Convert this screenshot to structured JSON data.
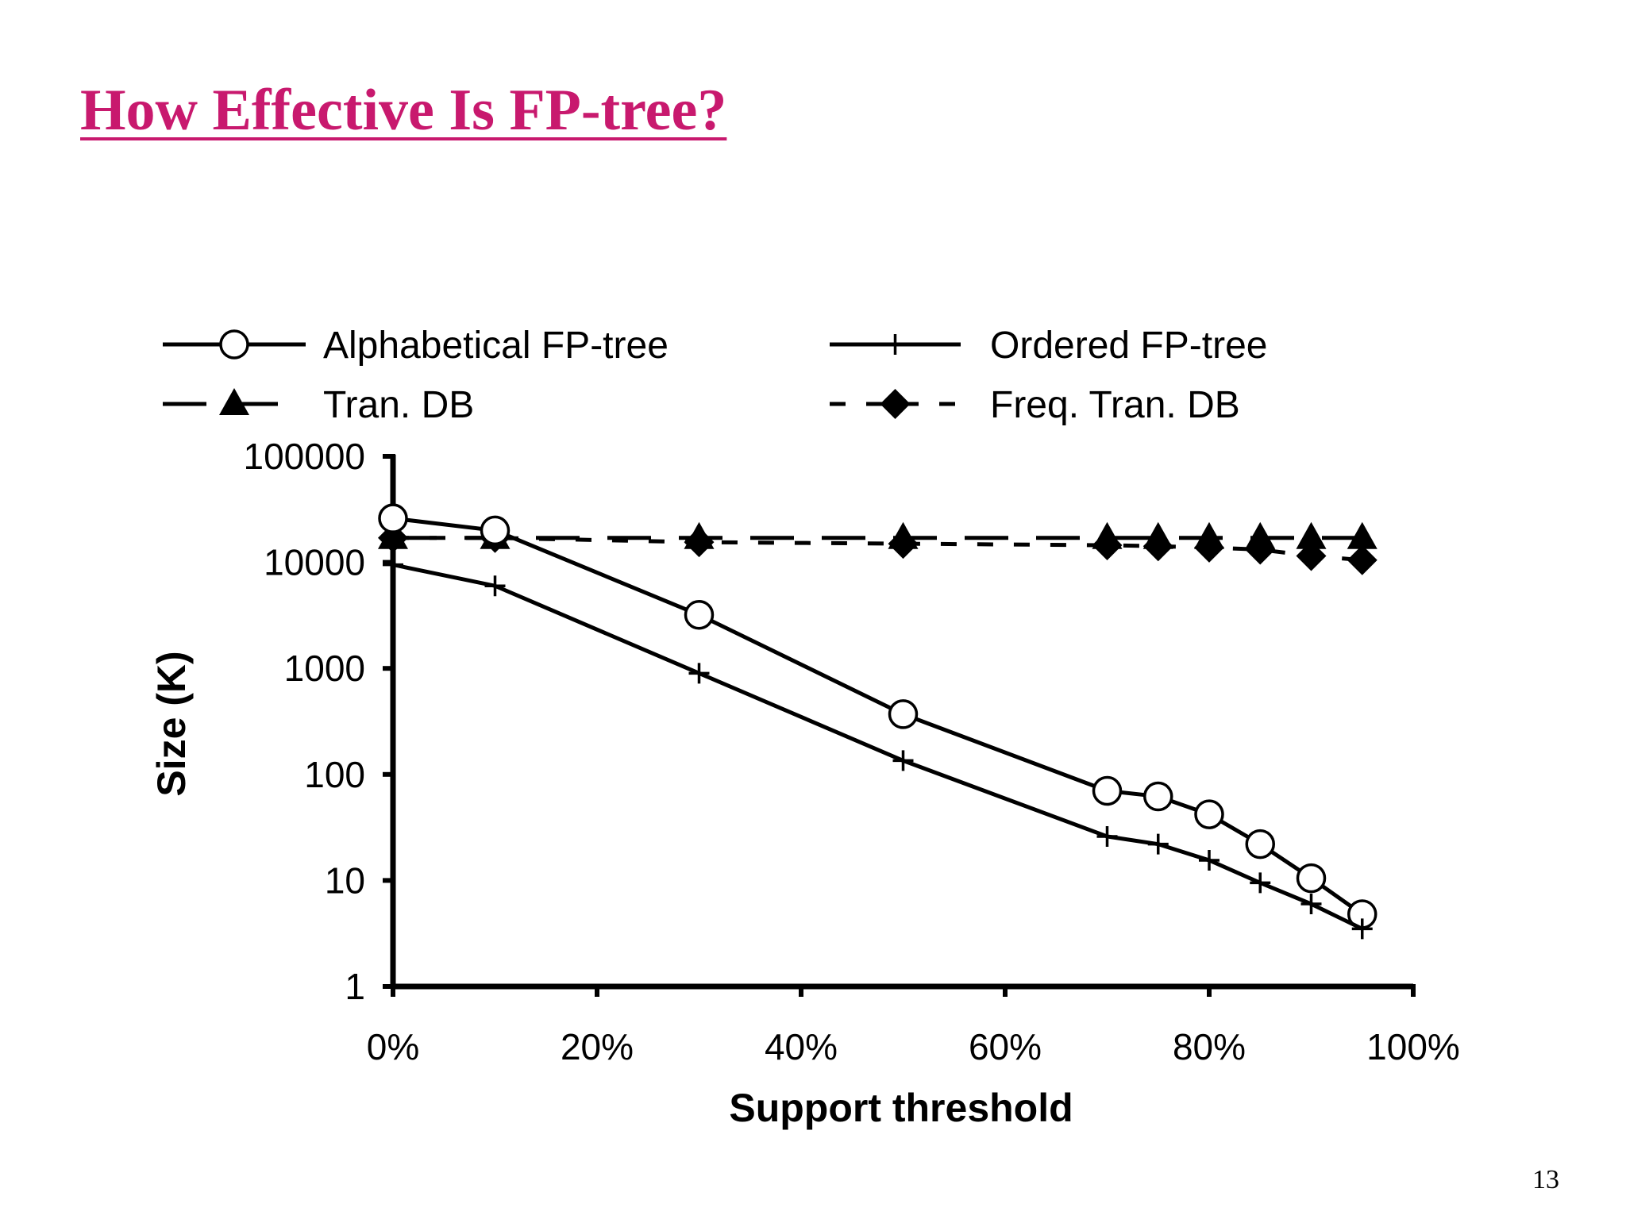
{
  "slide": {
    "title": "How Effective Is FP-tree?",
    "page_number": "13"
  },
  "chart_data": {
    "type": "line",
    "xlabel": "Support threshold",
    "ylabel": "Size (K)",
    "y_scale": "log",
    "xlim": [
      0,
      100
    ],
    "ylim": [
      1,
      100000
    ],
    "x_ticks": [
      "0%",
      "20%",
      "40%",
      "60%",
      "80%",
      "100%"
    ],
    "y_ticks": [
      "1",
      "10",
      "100",
      "1000",
      "10000",
      "100000"
    ],
    "grid": false,
    "legend_position": "top",
    "series": [
      {
        "name": "Alphabetical FP-tree",
        "marker": "circle-open",
        "line": "solid",
        "color": "#000000",
        "x": [
          0,
          10,
          30,
          50,
          70,
          75,
          80,
          85,
          90,
          95
        ],
        "y": [
          26000,
          20000,
          3200,
          370,
          70,
          62,
          42,
          22,
          10.5,
          4.8
        ]
      },
      {
        "name": "Ordered FP-tree",
        "marker": "plus",
        "line": "solid",
        "color": "#000000",
        "x": [
          0,
          10,
          30,
          50,
          70,
          75,
          80,
          85,
          90,
          95
        ],
        "y": [
          9500,
          6000,
          900,
          135,
          26,
          22,
          15.5,
          9.5,
          6,
          3.5
        ]
      },
      {
        "name": "Tran. DB",
        "marker": "triangle-filled",
        "line": "long-dash",
        "color": "#000000",
        "x": [
          0,
          10,
          30,
          50,
          70,
          75,
          80,
          85,
          90,
          95
        ],
        "y": [
          17000,
          17000,
          17000,
          17000,
          17000,
          17000,
          17000,
          17000,
          17000,
          17000
        ]
      },
      {
        "name": "Freq. Tran. DB",
        "marker": "diamond-filled",
        "line": "short-dash",
        "color": "#000000",
        "x": [
          0,
          10,
          30,
          50,
          70,
          75,
          80,
          85,
          90,
          95
        ],
        "y": [
          17000,
          17000,
          15500,
          15000,
          14500,
          14200,
          13800,
          13200,
          11500,
          10500
        ]
      }
    ]
  }
}
